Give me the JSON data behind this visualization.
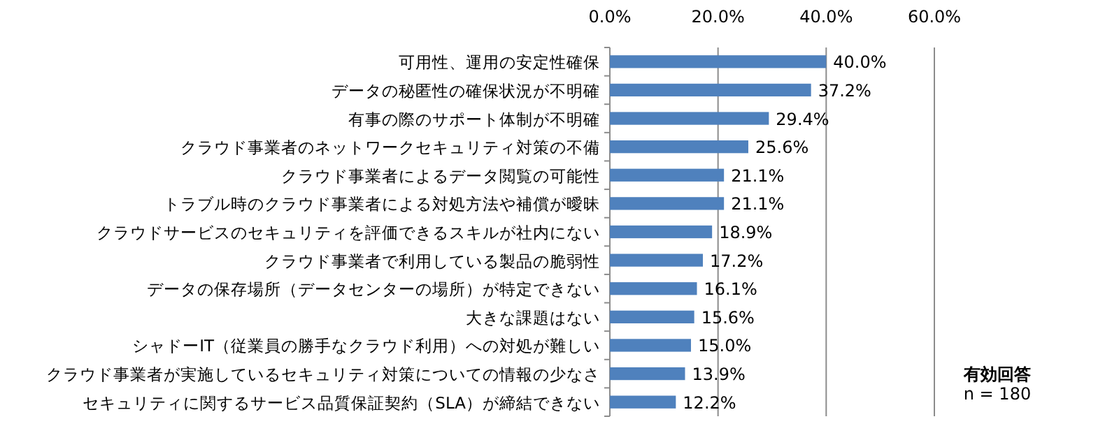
{
  "chart_data": {
    "type": "bar",
    "orientation": "horizontal",
    "categories": [
      "可用性、運用の安定性確保",
      "データの秘匿性の確保状況が不明確",
      "有事の際のサポート体制が不明確",
      "クラウド事業者のネットワークセキュリティ対策の不備",
      "クラウド事業者によるデータ閲覧の可能性",
      "トラブル時のクラウド事業者による対処方法や補償が曖昧",
      "クラウドサービスのセキュリティを評価できるスキルが社内にない",
      "クラウド事業者で利用している製品の脆弱性",
      "データの保存場所（データセンターの場所）が特定できない",
      "大きな課題はない",
      "シャドーIT（従業員の勝手なクラウド利用）への対処が難しい",
      "クラウド事業者が実施しているセキュリティ対策についての情報の少なさ",
      "セキュリティに関するサービス品質保証契約（SLA）が締結できない"
    ],
    "values": [
      40.0,
      37.2,
      29.4,
      25.6,
      21.1,
      21.1,
      18.9,
      17.2,
      16.1,
      15.6,
      15.0,
      13.9,
      12.2
    ],
    "value_labels": [
      "40.0%",
      "37.2%",
      "29.4%",
      "25.6%",
      "21.1%",
      "21.1%",
      "18.9%",
      "17.2%",
      "16.1%",
      "15.6%",
      "15.0%",
      "13.9%",
      "12.2%"
    ],
    "color": "#4f81bd",
    "xlim": [
      0,
      60
    ],
    "xticks": [
      {
        "value": 0,
        "label": "0.0%"
      },
      {
        "value": 20,
        "label": "20.0%"
      },
      {
        "value": 40,
        "label": "40.0%"
      },
      {
        "value": 60,
        "label": "60.0%"
      }
    ],
    "grid": "x",
    "annotations": [
      "有効回答",
      "n = 180"
    ]
  }
}
